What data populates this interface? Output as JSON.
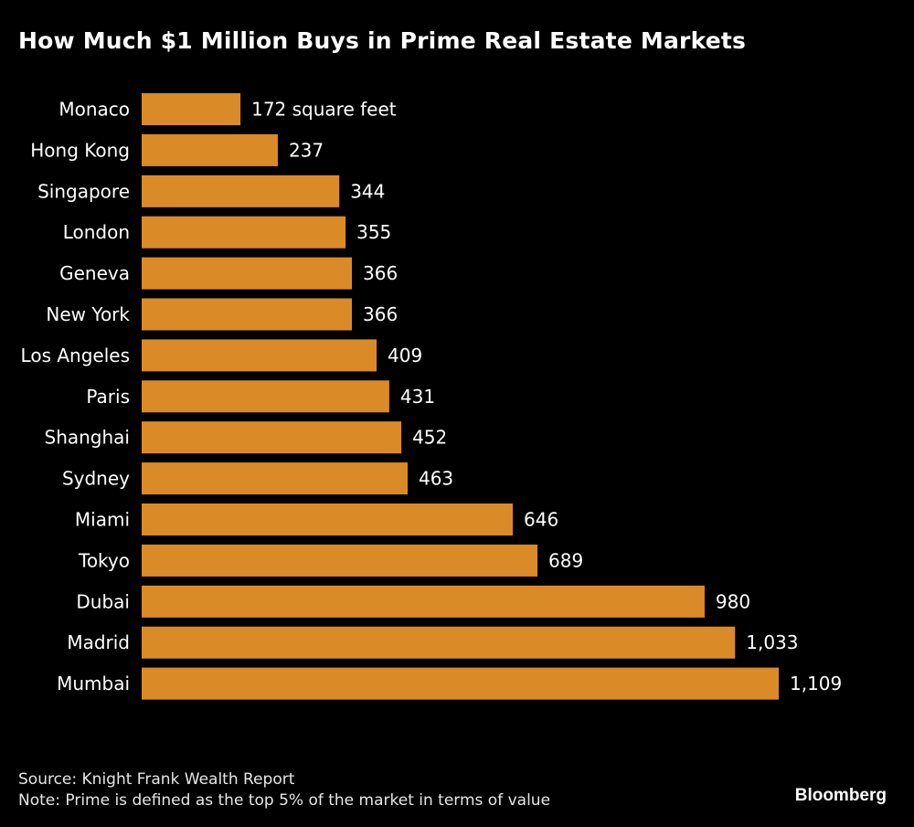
{
  "chart_data": {
    "type": "bar",
    "orientation": "horizontal",
    "title": "How Much $1 Million Buys in Prime Real Estate Markets",
    "xlabel": "",
    "ylabel": "",
    "unit_label": "square feet",
    "categories": [
      "Monaco",
      "Hong Kong",
      "Singapore",
      "London",
      "Geneva",
      "New York",
      "Los Angeles",
      "Paris",
      "Shanghai",
      "Sydney",
      "Miami",
      "Tokyo",
      "Dubai",
      "Madrid",
      "Mumbai"
    ],
    "values": [
      172,
      237,
      344,
      355,
      366,
      366,
      409,
      431,
      452,
      463,
      646,
      689,
      980,
      1033,
      1109
    ],
    "data_labels": [
      "172 square feet",
      "237",
      "344",
      "355",
      "366",
      "366",
      "409",
      "431",
      "452",
      "463",
      "646",
      "689",
      "980",
      "1,033",
      "1,109"
    ],
    "xlim": [
      0,
      1109
    ],
    "grid": false,
    "legend": "none",
    "bar_color": "#db8a28"
  },
  "footer": {
    "source": "Source: Knight Frank Wealth Report",
    "note": "Note: Prime is defined as the top 5% of the market in terms of value"
  },
  "brand": "Bloomberg"
}
